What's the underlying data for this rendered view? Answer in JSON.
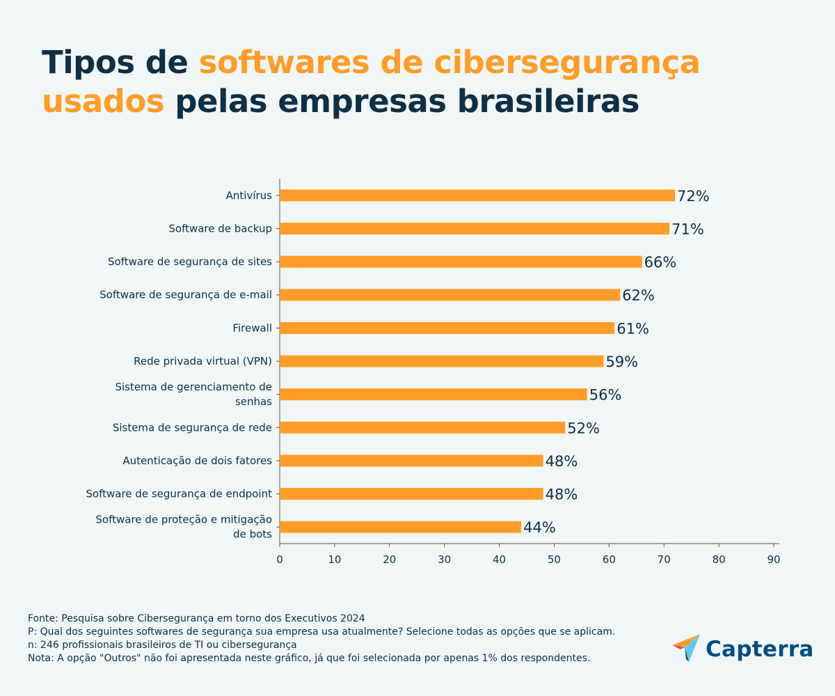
{
  "title": {
    "part1": "Tipos de ",
    "part2": "softwares de cibersegurança usados",
    "part3": " pelas empresas brasileiras"
  },
  "colors": {
    "bar": "#ff9d28",
    "text": "#0e2f44",
    "accent": "#ff9d28",
    "brand": "#044d80"
  },
  "chart_data": {
    "type": "bar",
    "orientation": "horizontal",
    "categories": [
      "Antivírus",
      "Software de backup",
      "Software de segurança de sites",
      "Software de segurança de e-mail",
      "Firewall",
      "Rede privada virtual (VPN)",
      "Sistema de gerenciamento de senhas",
      "Sistema de segurança de rede",
      "Autenticação de dois fatores",
      "Software de segurança de endpoint",
      "Software de proteção e mitigação de bots"
    ],
    "category_lines": [
      [
        "Antivírus"
      ],
      [
        "Software de backup"
      ],
      [
        "Software de segurança de sites"
      ],
      [
        "Software de segurança de e-mail"
      ],
      [
        "Firewall"
      ],
      [
        "Rede privada virtual (VPN)"
      ],
      [
        "Sistema de gerenciamento de",
        "senhas"
      ],
      [
        "Sistema de segurança de rede"
      ],
      [
        "Autenticação de dois fatores"
      ],
      [
        "Software de segurança de endpoint"
      ],
      [
        "Software de proteção e mitigação",
        "de bots"
      ]
    ],
    "values": [
      72,
      71,
      66,
      62,
      61,
      59,
      56,
      52,
      48,
      48,
      44
    ],
    "value_labels": [
      "72%",
      "71%",
      "66%",
      "62%",
      "61%",
      "59%",
      "56%",
      "52%",
      "48%",
      "48%",
      "44%"
    ],
    "xlim": [
      0,
      90
    ],
    "xticks": [
      0,
      10,
      20,
      30,
      40,
      50,
      60,
      70,
      80,
      90
    ],
    "grid": false
  },
  "footer": {
    "source": "Fonte: Pesquisa sobre Cibersegurança em torno dos Executivos 2024",
    "question": "P: Qual dos seguintes softwares de segurança sua empresa usa atualmente? Selecione todas as opções que se aplicam.",
    "sample": "n: 246 profissionais brasileiros de TI ou cibersegurança",
    "note": "Nota: A opção \"Outros\" não foi apresentada neste gráfico, já que foi selecionada por apenas 1% dos respondentes."
  },
  "logo": {
    "text": "Capterra",
    "icon": "capterra-arrow-icon"
  }
}
